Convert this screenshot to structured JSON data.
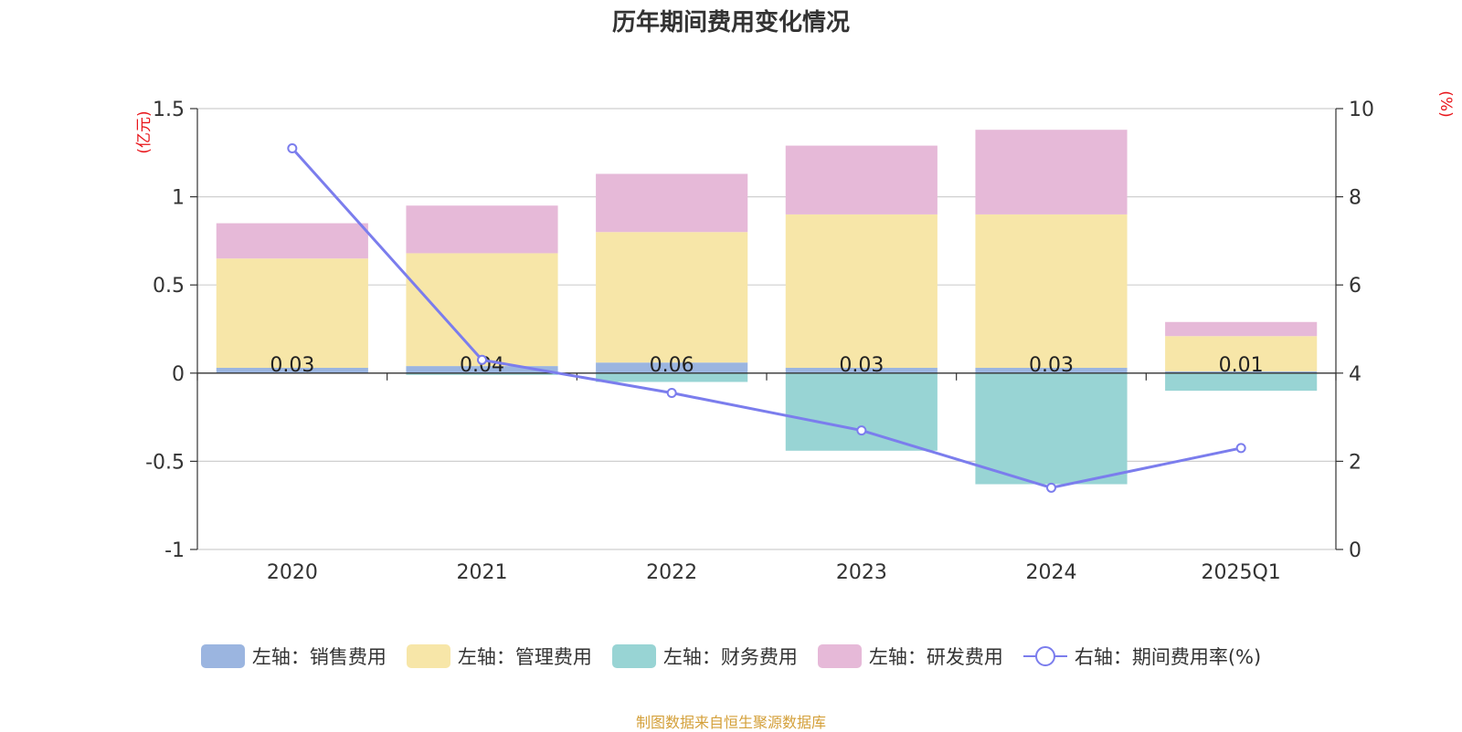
{
  "chart_data": {
    "type": "bar",
    "title": "历年期间费用变化情况",
    "categories": [
      "2020",
      "2021",
      "2022",
      "2023",
      "2024",
      "2025Q1"
    ],
    "left_axis": {
      "unit": "(亿元)",
      "ylim": [
        -1,
        1.5
      ],
      "ticks": [
        "1.5",
        "1",
        "0.5",
        "0",
        "-0.5",
        "-1"
      ],
      "tick_values": [
        1.5,
        1,
        0.5,
        0,
        -0.5,
        -1
      ]
    },
    "right_axis": {
      "unit": "(%)",
      "ylim": [
        0,
        10
      ],
      "ticks": [
        "10",
        "8",
        "6",
        "4",
        "2",
        "0"
      ],
      "tick_values": [
        10,
        8,
        6,
        4,
        2,
        0
      ]
    },
    "series": [
      {
        "name": "左轴：销售费用",
        "kind": "bar",
        "axis": "left",
        "color": "#9bb5e0",
        "values": [
          0.03,
          0.04,
          0.06,
          0.03,
          0.03,
          0.01
        ],
        "labels": [
          "0.03",
          "0.04",
          "0.06",
          "0.03",
          "0.03",
          "0.01"
        ]
      },
      {
        "name": "左轴：管理费用",
        "kind": "bar",
        "axis": "left",
        "color": "#f7e6a8",
        "values": [
          0.62,
          0.64,
          0.74,
          0.87,
          0.87,
          0.2
        ]
      },
      {
        "name": "左轴：财务费用",
        "kind": "bar",
        "axis": "left",
        "color": "#98d4d4",
        "values": [
          0,
          -0.01,
          -0.05,
          -0.44,
          -0.63,
          -0.1
        ]
      },
      {
        "name": "左轴：研发费用",
        "kind": "bar",
        "axis": "left",
        "color": "#e6b9d8",
        "values": [
          0.2,
          0.27,
          0.33,
          0.39,
          0.48,
          0.08
        ]
      },
      {
        "name": "右轴：期间费用率(%)",
        "kind": "line",
        "axis": "right",
        "color": "#7b7ded",
        "values": [
          9.1,
          4.3,
          3.55,
          2.7,
          1.4,
          2.3
        ]
      }
    ],
    "grid": true,
    "legend_position": "bottom"
  },
  "footer": {
    "source": "制图数据来自恒生聚源数据库"
  }
}
